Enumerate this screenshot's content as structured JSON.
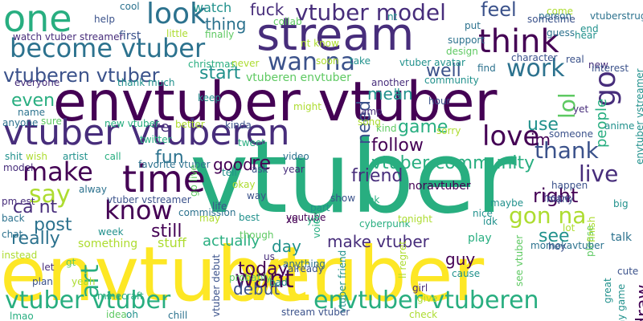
{
  "palette": {
    "c1": "#440154",
    "c2": "#472d7b",
    "c3": "#3b528b",
    "c4": "#2c728e",
    "c5": "#21918c",
    "c6": "#28ae80",
    "c7": "#5ec962",
    "c8": "#addc30",
    "c9": "#fde725"
  },
  "words": [
    "vtuber",
    "envtuber",
    "vtuber",
    "envtuber vtuber",
    "stream",
    "one",
    "think",
    "vtuber vtuberen",
    "become vtuber",
    "look",
    "vtuber model",
    "wan na",
    "lol",
    "go",
    "love",
    "work",
    "time",
    "make",
    "thank",
    "gon na",
    "know",
    "live",
    "say",
    "want",
    "envtuber vtuberen",
    "vtuber vtuber",
    "vtuberen vtuber",
    "follow",
    "im",
    "vtuber community",
    "friend",
    "good",
    "fun",
    "art",
    "post",
    "ca nt",
    "really",
    "even",
    "start",
    "thing",
    "fuck",
    "feel",
    "right",
    "see",
    "use",
    "game",
    "people",
    "well",
    "need",
    "mean",
    "today",
    "debut",
    "actually",
    "day",
    "still",
    "draw",
    "make vtuber",
    "guy",
    "play",
    "stuff",
    "something",
    "re",
    "ve",
    "watch",
    "first",
    "vtuberen envtuber",
    "noravtuber",
    "ll",
    "hope",
    "talk",
    "come",
    "cool",
    "help",
    "collab",
    "finally",
    "little",
    "watch vtuber streamer",
    "design",
    "support",
    "vtuber avatar",
    "amp",
    "another",
    "community",
    "everyone",
    "name",
    "anyone",
    "sure",
    "christmas",
    "thank much",
    "character",
    "real",
    "new",
    "interest",
    "find",
    "vtuberstruggle",
    "person",
    "guess",
    "end",
    "envtuber vstreamer",
    "anime",
    "yet",
    "someone",
    "kind",
    "sorry",
    "new vtuber",
    "twitter",
    "keep",
    "better",
    "kinda",
    "might",
    "song",
    "hour",
    "shit",
    "wish",
    "artist",
    "call",
    "favorite vtuber",
    "go live",
    "tweet",
    "video",
    "year",
    "ask",
    "tell",
    "okay",
    "model",
    "pm est",
    "alway",
    "vtuber vstreamer",
    "back",
    "chat",
    "instead",
    "week",
    "commission",
    "life",
    "way",
    "best",
    "youtube",
    "xd",
    "yo",
    "part",
    "show",
    "ok",
    "maybe",
    "happen",
    "many",
    "big",
    "please",
    "lot",
    "finish",
    "momokavtuber",
    "hey",
    "let",
    "gt",
    "yeah",
    "plan",
    "us",
    "anything",
    "voice",
    "vtuber friend",
    "cyberpunk",
    "ll regret",
    "nice",
    "idk",
    "see vtuber",
    "vtuber debut",
    "probably",
    "already",
    "bad",
    "cause",
    "give",
    "girl",
    "great",
    "play game",
    "cute",
    "idea",
    "oh",
    "chill",
    "stream vtuber",
    "check",
    "lmao",
    "minecraft",
    "hear",
    "nt",
    "sometime",
    "put",
    "nt know",
    "take",
    "soon",
    "never",
    "may",
    "though",
    "tonight",
    "wait",
    "amaze"
  ]
}
